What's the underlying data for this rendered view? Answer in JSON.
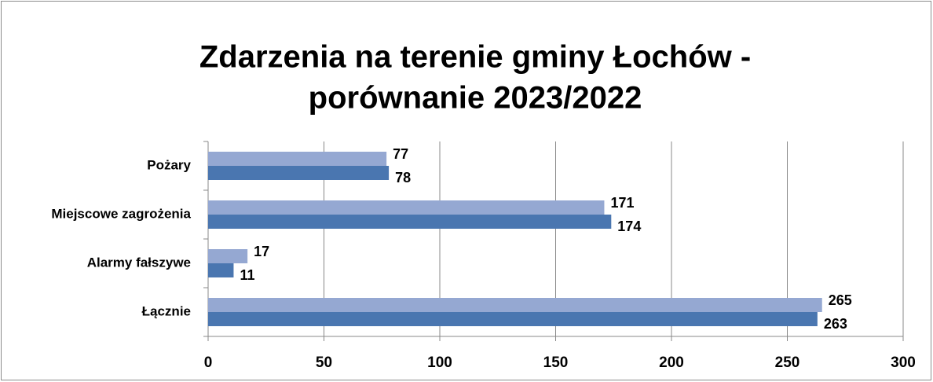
{
  "chart_data": {
    "type": "hbar",
    "title": [
      "Zdarzenia na terenie gminy Łochów -",
      "porównanie 2023/2022"
    ],
    "categories": [
      "Pożary",
      "Miejscowe zagrożenia",
      "Alarmy fałszywe",
      "Łącznie"
    ],
    "series": [
      {
        "color": "#95a8d2",
        "values": [
          77,
          171,
          17,
          265
        ]
      },
      {
        "color": "#4a76b0",
        "values": [
          78,
          174,
          11,
          263
        ]
      }
    ],
    "xlim": [
      0,
      300
    ],
    "xticks": [
      0,
      50,
      100,
      150,
      200,
      250,
      300
    ],
    "grid": true
  }
}
